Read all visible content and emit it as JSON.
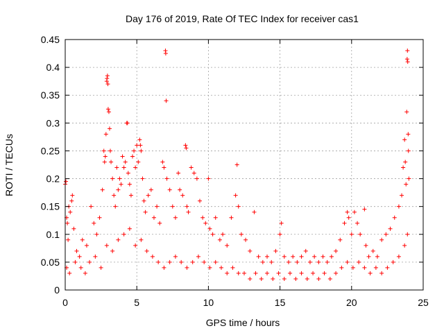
{
  "chart_data": {
    "type": "scatter",
    "title": "Day 176 of 2019, Rate Of TEC Index for receiver cas1",
    "xlabel": "GPS time / hours",
    "ylabel": "ROTI / TECUs",
    "xlim": [
      0,
      25
    ],
    "ylim": [
      0,
      0.45
    ],
    "xticks": [
      0,
      5,
      10,
      15,
      20,
      25
    ],
    "xtick_labels": [
      "0",
      "5",
      "10",
      "15",
      "20",
      "25"
    ],
    "yticks": [
      0,
      0.05,
      0.1,
      0.15,
      0.2,
      0.25,
      0.3,
      0.35,
      0.4,
      0.45
    ],
    "ytick_labels": [
      "0",
      "0.05",
      "0.1",
      "0.15",
      "0.2",
      "0.25",
      "0.3",
      "0.35",
      "0.4",
      "0.45"
    ],
    "grid": true,
    "marker": "+",
    "color": "#ff0000",
    "series": [
      {
        "name": "ROTI",
        "points": [
          [
            0.0,
            0.19
          ],
          [
            0.05,
            0.195
          ],
          [
            0.1,
            0.13
          ],
          [
            0.15,
            0.12
          ],
          [
            0.2,
            0.09
          ],
          [
            0.25,
            0.15
          ],
          [
            0.35,
            0.14
          ],
          [
            0.45,
            0.16
          ],
          [
            0.5,
            0.17
          ],
          [
            0.6,
            0.11
          ],
          [
            0.8,
            0.07
          ],
          [
            1.0,
            0.06
          ],
          [
            1.2,
            0.09
          ],
          [
            1.5,
            0.08
          ],
          [
            1.8,
            0.15
          ],
          [
            2.0,
            0.12
          ],
          [
            2.2,
            0.1
          ],
          [
            2.4,
            0.13
          ],
          [
            2.6,
            0.18
          ],
          [
            2.7,
            0.25
          ],
          [
            2.75,
            0.23
          ],
          [
            2.8,
            0.24
          ],
          [
            2.85,
            0.28
          ],
          [
            2.9,
            0.375
          ],
          [
            2.92,
            0.38
          ],
          [
            2.95,
            0.385
          ],
          [
            2.98,
            0.37
          ],
          [
            3.0,
            0.325
          ],
          [
            3.05,
            0.32
          ],
          [
            3.1,
            0.29
          ],
          [
            3.15,
            0.25
          ],
          [
            3.2,
            0.23
          ],
          [
            3.3,
            0.2
          ],
          [
            3.4,
            0.17
          ],
          [
            3.5,
            0.15
          ],
          [
            3.6,
            0.22
          ],
          [
            3.7,
            0.18
          ],
          [
            3.8,
            0.2
          ],
          [
            3.9,
            0.19
          ],
          [
            4.0,
            0.24
          ],
          [
            4.1,
            0.22
          ],
          [
            4.2,
            0.23
          ],
          [
            4.3,
            0.3
          ],
          [
            4.35,
            0.3
          ],
          [
            4.4,
            0.21
          ],
          [
            4.5,
            0.19
          ],
          [
            4.6,
            0.17
          ],
          [
            4.7,
            0.24
          ],
          [
            4.8,
            0.25
          ],
          [
            4.9,
            0.22
          ],
          [
            5.0,
            0.26
          ],
          [
            5.1,
            0.23
          ],
          [
            5.2,
            0.27
          ],
          [
            5.25,
            0.26
          ],
          [
            5.3,
            0.25
          ],
          [
            5.4,
            0.2
          ],
          [
            5.5,
            0.16
          ],
          [
            5.6,
            0.14
          ],
          [
            5.8,
            0.17
          ],
          [
            6.0,
            0.18
          ],
          [
            6.2,
            0.13
          ],
          [
            6.4,
            0.15
          ],
          [
            6.6,
            0.12
          ],
          [
            6.8,
            0.23
          ],
          [
            6.9,
            0.22
          ],
          [
            7.0,
            0.43
          ],
          [
            7.02,
            0.425
          ],
          [
            7.05,
            0.34
          ],
          [
            7.1,
            0.2
          ],
          [
            7.3,
            0.18
          ],
          [
            7.5,
            0.15
          ],
          [
            7.7,
            0.13
          ],
          [
            7.9,
            0.21
          ],
          [
            8.0,
            0.18
          ],
          [
            8.2,
            0.17
          ],
          [
            8.4,
            0.26
          ],
          [
            8.45,
            0.255
          ],
          [
            8.5,
            0.15
          ],
          [
            8.6,
            0.14
          ],
          [
            8.8,
            0.22
          ],
          [
            9.0,
            0.21
          ],
          [
            9.2,
            0.2
          ],
          [
            9.4,
            0.16
          ],
          [
            9.6,
            0.13
          ],
          [
            9.8,
            0.12
          ],
          [
            10.0,
            0.2
          ],
          [
            10.1,
            0.11
          ],
          [
            10.3,
            0.1
          ],
          [
            10.5,
            0.13
          ],
          [
            10.8,
            0.09
          ],
          [
            11.0,
            0.1
          ],
          [
            11.3,
            0.08
          ],
          [
            11.6,
            0.13
          ],
          [
            11.9,
            0.17
          ],
          [
            12.0,
            0.225
          ],
          [
            12.1,
            0.15
          ],
          [
            12.3,
            0.1
          ],
          [
            12.6,
            0.09
          ],
          [
            12.9,
            0.07
          ],
          [
            13.2,
            0.14
          ],
          [
            13.5,
            0.06
          ],
          [
            13.8,
            0.05
          ],
          [
            14.1,
            0.06
          ],
          [
            14.4,
            0.05
          ],
          [
            14.7,
            0.07
          ],
          [
            15.0,
            0.1
          ],
          [
            15.1,
            0.12
          ],
          [
            15.3,
            0.06
          ],
          [
            15.6,
            0.05
          ],
          [
            15.9,
            0.06
          ],
          [
            16.2,
            0.05
          ],
          [
            16.5,
            0.06
          ],
          [
            16.8,
            0.07
          ],
          [
            17.1,
            0.05
          ],
          [
            17.4,
            0.06
          ],
          [
            17.7,
            0.05
          ],
          [
            18.0,
            0.06
          ],
          [
            18.3,
            0.05
          ],
          [
            18.6,
            0.06
          ],
          [
            18.9,
            0.07
          ],
          [
            19.2,
            0.09
          ],
          [
            19.5,
            0.12
          ],
          [
            19.7,
            0.14
          ],
          [
            19.8,
            0.13
          ],
          [
            20.0,
            0.1
          ],
          [
            20.2,
            0.14
          ],
          [
            20.4,
            0.12
          ],
          [
            20.6,
            0.1
          ],
          [
            20.9,
            0.145
          ],
          [
            21.0,
            0.08
          ],
          [
            21.2,
            0.06
          ],
          [
            21.5,
            0.07
          ],
          [
            21.8,
            0.06
          ],
          [
            22.1,
            0.09
          ],
          [
            22.4,
            0.1
          ],
          [
            22.7,
            0.11
          ],
          [
            23.0,
            0.13
          ],
          [
            23.3,
            0.15
          ],
          [
            23.5,
            0.17
          ],
          [
            23.6,
            0.22
          ],
          [
            23.7,
            0.27
          ],
          [
            23.75,
            0.23
          ],
          [
            23.8,
            0.19
          ],
          [
            23.85,
            0.32
          ],
          [
            23.88,
            0.415
          ],
          [
            23.9,
            0.43
          ],
          [
            23.92,
            0.41
          ],
          [
            23.95,
            0.28
          ],
          [
            23.97,
            0.25
          ],
          [
            24.0,
            0.2
          ],
          [
            0.1,
            0.04
          ],
          [
            0.3,
            0.03
          ],
          [
            0.7,
            0.05
          ],
          [
            1.1,
            0.04
          ],
          [
            1.4,
            0.03
          ],
          [
            1.7,
            0.05
          ],
          [
            2.1,
            0.06
          ],
          [
            2.5,
            0.04
          ],
          [
            2.9,
            0.08
          ],
          [
            3.3,
            0.07
          ],
          [
            3.7,
            0.09
          ],
          [
            4.1,
            0.1
          ],
          [
            4.5,
            0.11
          ],
          [
            4.9,
            0.08
          ],
          [
            5.3,
            0.09
          ],
          [
            5.7,
            0.07
          ],
          [
            6.1,
            0.06
          ],
          [
            6.5,
            0.05
          ],
          [
            6.9,
            0.04
          ],
          [
            7.3,
            0.05
          ],
          [
            7.7,
            0.06
          ],
          [
            8.1,
            0.05
          ],
          [
            8.5,
            0.04
          ],
          [
            8.9,
            0.05
          ],
          [
            9.3,
            0.06
          ],
          [
            9.7,
            0.05
          ],
          [
            10.1,
            0.04
          ],
          [
            10.5,
            0.05
          ],
          [
            10.9,
            0.04
          ],
          [
            11.3,
            0.03
          ],
          [
            11.7,
            0.04
          ],
          [
            12.1,
            0.03
          ],
          [
            12.5,
            0.03
          ],
          [
            12.9,
            0.02
          ],
          [
            13.3,
            0.03
          ],
          [
            13.7,
            0.02
          ],
          [
            14.1,
            0.03
          ],
          [
            14.5,
            0.02
          ],
          [
            14.9,
            0.03
          ],
          [
            15.3,
            0.02
          ],
          [
            15.7,
            0.03
          ],
          [
            16.1,
            0.02
          ],
          [
            16.5,
            0.03
          ],
          [
            16.9,
            0.02
          ],
          [
            17.3,
            0.03
          ],
          [
            17.7,
            0.02
          ],
          [
            18.1,
            0.03
          ],
          [
            18.5,
            0.02
          ],
          [
            18.9,
            0.03
          ],
          [
            19.3,
            0.04
          ],
          [
            19.7,
            0.05
          ],
          [
            20.1,
            0.04
          ],
          [
            20.5,
            0.05
          ],
          [
            20.9,
            0.04
          ],
          [
            21.3,
            0.03
          ],
          [
            21.7,
            0.04
          ],
          [
            22.1,
            0.03
          ],
          [
            22.5,
            0.04
          ],
          [
            22.9,
            0.05
          ],
          [
            23.3,
            0.06
          ],
          [
            23.7,
            0.08
          ],
          [
            23.9,
            0.1
          ]
        ]
      }
    ]
  }
}
